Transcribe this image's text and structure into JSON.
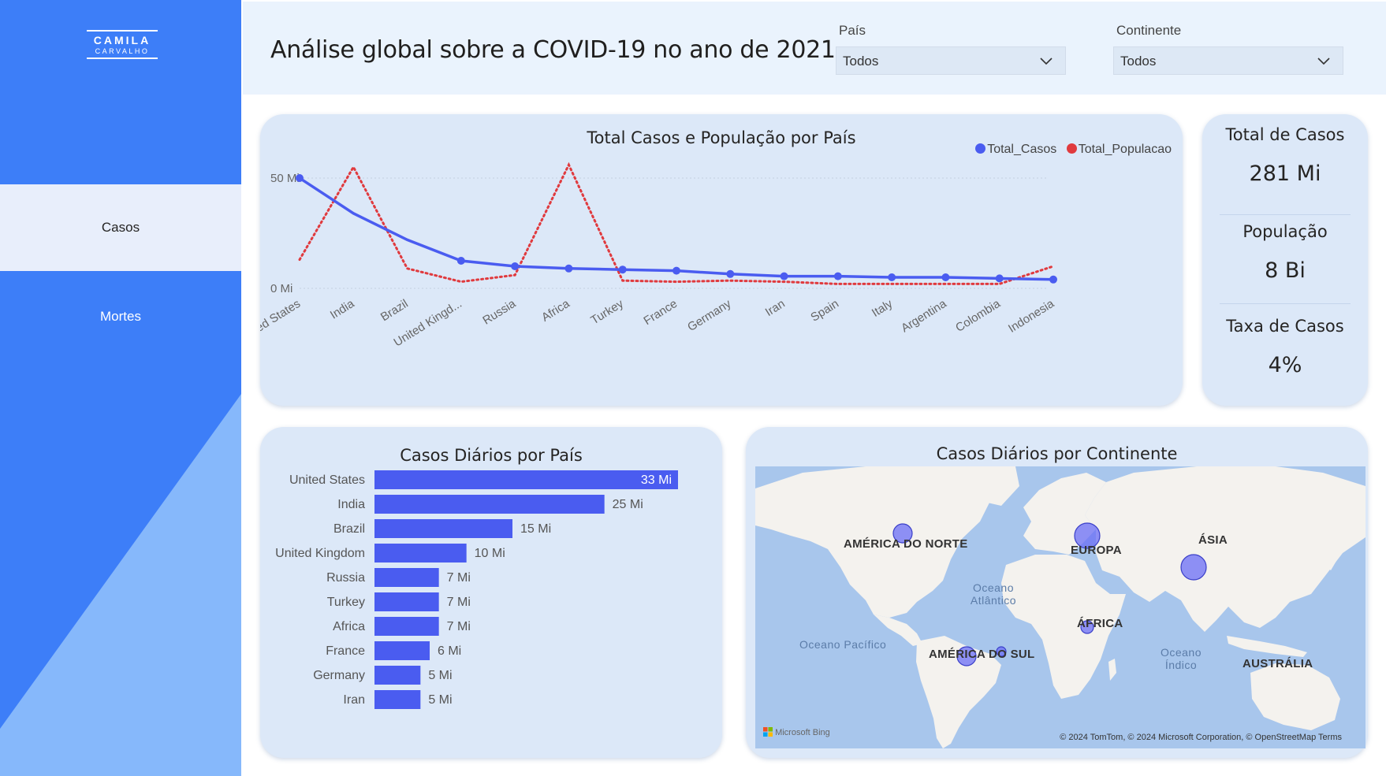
{
  "sidebar": {
    "logo_line1": "CAMILA",
    "logo_line2": "CARVALHO",
    "nav": [
      {
        "label": "Casos",
        "selected": true
      },
      {
        "label": "Mortes",
        "selected": false
      }
    ]
  },
  "header": {
    "title": "Análise global sobre a COVID-19 no ano de 2021",
    "filters": [
      {
        "label": "País",
        "value": "Todos"
      },
      {
        "label": "Continente",
        "value": "Todos"
      }
    ]
  },
  "colors": {
    "accent": "#3d7ef8",
    "series_cases": "#4a5cf0",
    "series_population": "#e03a3e",
    "card_bg": "#dce8f8"
  },
  "kpis": [
    {
      "label": "Total de Casos",
      "value": "281 Mi"
    },
    {
      "label": "População",
      "value": "8 Bi"
    },
    {
      "label": "Taxa de Casos",
      "value": "4%"
    }
  ],
  "chart_data": [
    {
      "type": "line",
      "title": "Total Casos e População por País",
      "categories": [
        "United States",
        "India",
        "Brazil",
        "United Kingd...",
        "Russia",
        "Africa",
        "Turkey",
        "France",
        "Germany",
        "Iran",
        "Spain",
        "Italy",
        "Argentina",
        "Colombia",
        "Indonesia"
      ],
      "y_ticks": [
        "0 Mi",
        "50 Mi"
      ],
      "ylim": [
        0,
        60
      ],
      "legend_position": "top-right",
      "series": [
        {
          "name": "Total_Casos",
          "style": "solid",
          "values": [
            50,
            34,
            22,
            12.5,
            10,
            9,
            8.5,
            8,
            6.5,
            5.5,
            5.5,
            5,
            5,
            4.5,
            4
          ]
        },
        {
          "name": "Total_Populacao",
          "style": "dotted",
          "values": [
            13,
            55,
            9,
            3,
            6,
            56,
            3.5,
            3,
            3.5,
            3,
            2,
            2,
            2,
            2,
            10
          ]
        }
      ]
    },
    {
      "type": "bar",
      "orientation": "horizontal",
      "title": "Casos Diários por País",
      "categories": [
        "United States",
        "India",
        "Brazil",
        "United Kingdom",
        "Russia",
        "Turkey",
        "Africa",
        "France",
        "Germany",
        "Iran"
      ],
      "values": [
        33,
        25,
        15,
        10,
        7,
        7,
        7,
        6,
        5,
        5
      ],
      "value_labels": [
        "33 Mi",
        "25 Mi",
        "15 Mi",
        "10 Mi",
        "7 Mi",
        "7 Mi",
        "7 Mi",
        "6 Mi",
        "5 Mi",
        "5 Mi"
      ]
    }
  ],
  "map": {
    "title": "Casos Diários por Continente",
    "labels": [
      "AMÉRICA DO NORTE",
      "EUROPA",
      "ÁSIA",
      "ÁFRICA",
      "AMÉRICA DO SUL",
      "AUSTRÁLIA"
    ],
    "oceans": [
      "Oceano Atlântico",
      "Oceano Pacífico",
      "Oceano Índico"
    ],
    "attribution": "© 2024 TomTom, © 2024 Microsoft Corporation, © OpenStreetMap  Terms",
    "provider": "Microsoft Bing"
  }
}
